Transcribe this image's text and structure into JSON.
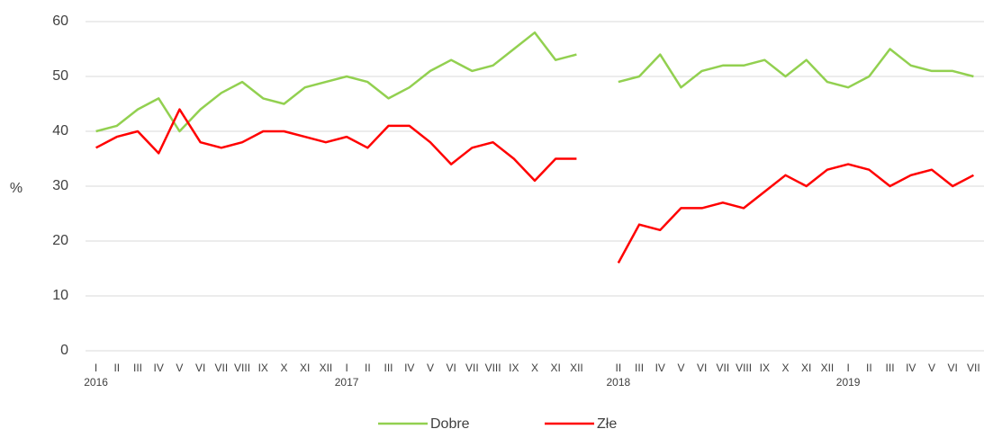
{
  "chart_data": {
    "type": "line",
    "y_label": "%",
    "categories": [
      "I",
      "II",
      "III",
      "IV",
      "V",
      "VI",
      "VII",
      "VIII",
      "IX",
      "X",
      "XI",
      "XII",
      "I",
      "II",
      "III",
      "IV",
      "V",
      "VI",
      "VII",
      "VIII",
      "IX",
      "X",
      "XI",
      "XII",
      null,
      "II",
      "III",
      "IV",
      "V",
      "VI",
      "VII",
      "VIII",
      "IX",
      "X",
      "XI",
      "XII",
      "I",
      "II",
      "III",
      "IV",
      "V",
      "VI",
      "VII"
    ],
    "year_labels": [
      "2016",
      null,
      null,
      null,
      null,
      null,
      null,
      null,
      null,
      null,
      null,
      null,
      "2017",
      null,
      null,
      null,
      null,
      null,
      null,
      null,
      null,
      null,
      null,
      null,
      null,
      "2018",
      null,
      null,
      null,
      null,
      null,
      null,
      null,
      null,
      null,
      null,
      "2019",
      null,
      null,
      null,
      null,
      null,
      null
    ],
    "series": [
      {
        "name": "Dobre",
        "color": "#92d050",
        "values": [
          40,
          41,
          44,
          46,
          40,
          44,
          47,
          49,
          46,
          45,
          48,
          49,
          50,
          49,
          46,
          48,
          51,
          53,
          51,
          52,
          55,
          58,
          53,
          54,
          null,
          49,
          50,
          54,
          48,
          51,
          52,
          52,
          53,
          50,
          53,
          49,
          48,
          50,
          55,
          52,
          51,
          51,
          50
        ]
      },
      {
        "name": "Złe",
        "color": "#ff0000",
        "values": [
          37,
          39,
          40,
          36,
          44,
          38,
          37,
          38,
          40,
          40,
          39,
          38,
          39,
          37,
          41,
          41,
          38,
          34,
          37,
          38,
          35,
          31,
          35,
          35,
          null,
          16,
          23,
          22,
          26,
          26,
          27,
          26,
          29,
          32,
          30,
          33,
          34,
          33,
          30,
          32,
          33,
          30,
          32
        ]
      }
    ],
    "ylim": [
      0,
      60
    ],
    "yticks": [
      0,
      10,
      20,
      30,
      40,
      50,
      60
    ],
    "grid": true,
    "legend": "bottom"
  }
}
